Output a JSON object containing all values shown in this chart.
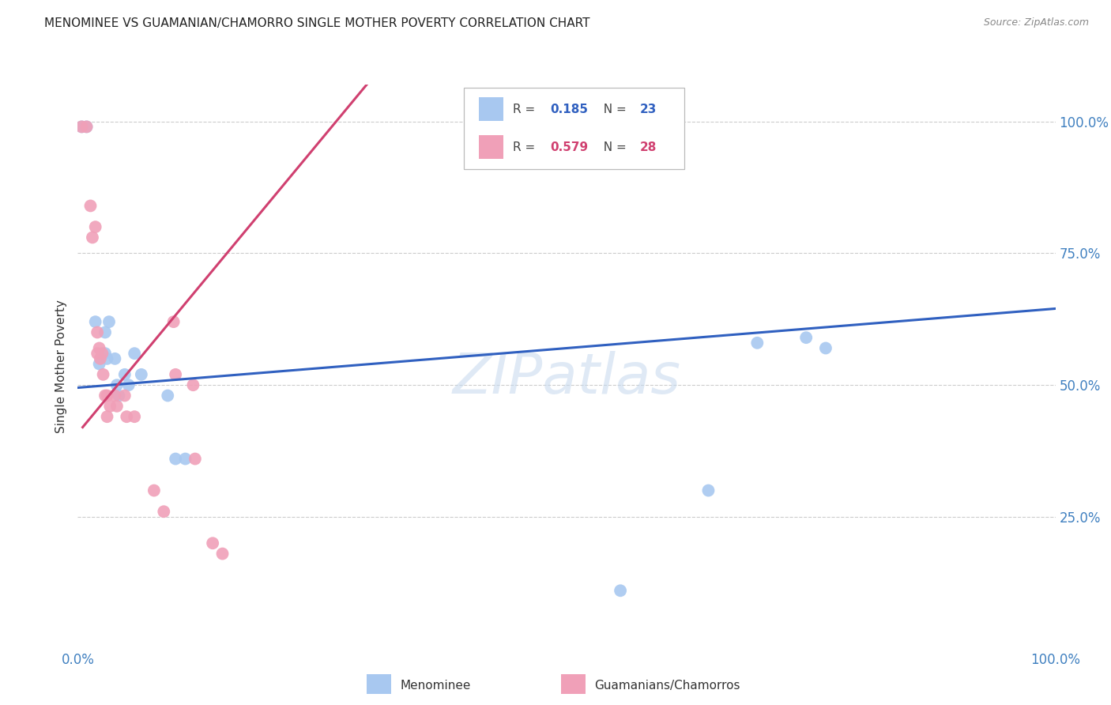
{
  "title": "MENOMINEE VS GUAMANIAN/CHAMORRO SINGLE MOTHER POVERTY CORRELATION CHART",
  "source": "Source: ZipAtlas.com",
  "ylabel": "Single Mother Poverty",
  "ytick_labels": [
    "100.0%",
    "75.0%",
    "50.0%",
    "25.0%"
  ],
  "ytick_values": [
    1.0,
    0.75,
    0.5,
    0.25
  ],
  "legend_blue_r_val": "0.185",
  "legend_blue_n_val": "23",
  "legend_pink_r_val": "0.579",
  "legend_pink_n_val": "28",
  "legend_label_blue": "Menominee",
  "legend_label_pink": "Guamanians/Chamorros",
  "blue_color": "#A8C8F0",
  "pink_color": "#F0A0B8",
  "blue_line_color": "#3060C0",
  "pink_line_color": "#D04070",
  "tick_color": "#4080C0",
  "watermark": "ZIPatlas",
  "menominee_x": [
    0.004,
    0.009,
    0.018,
    0.022,
    0.028,
    0.028,
    0.03,
    0.032,
    0.038,
    0.04,
    0.042,
    0.048,
    0.052,
    0.058,
    0.065,
    0.092,
    0.1,
    0.11,
    0.555,
    0.645,
    0.695,
    0.745,
    0.765
  ],
  "menominee_y": [
    0.99,
    0.99,
    0.62,
    0.54,
    0.6,
    0.56,
    0.55,
    0.62,
    0.55,
    0.5,
    0.48,
    0.52,
    0.5,
    0.56,
    0.52,
    0.48,
    0.36,
    0.36,
    0.11,
    0.3,
    0.58,
    0.59,
    0.57
  ],
  "chamorro_x": [
    0.004,
    0.009,
    0.013,
    0.015,
    0.018,
    0.02,
    0.02,
    0.022,
    0.023,
    0.025,
    0.026,
    0.028,
    0.03,
    0.03,
    0.033,
    0.038,
    0.04,
    0.048,
    0.05,
    0.058,
    0.078,
    0.088,
    0.098,
    0.1,
    0.118,
    0.12,
    0.138,
    0.148
  ],
  "chamorro_y": [
    0.99,
    0.99,
    0.84,
    0.78,
    0.8,
    0.6,
    0.56,
    0.57,
    0.55,
    0.56,
    0.52,
    0.48,
    0.48,
    0.44,
    0.46,
    0.48,
    0.46,
    0.48,
    0.44,
    0.44,
    0.3,
    0.26,
    0.62,
    0.52,
    0.5,
    0.36,
    0.2,
    0.18
  ],
  "blue_trendline_x": [
    0.0,
    1.0
  ],
  "blue_trendline_y": [
    0.495,
    0.645
  ],
  "pink_trendline_x": [
    0.005,
    0.3
  ],
  "pink_trendline_y": [
    0.42,
    1.08
  ],
  "xlim": [
    0.0,
    1.0
  ],
  "ylim": [
    0.0,
    1.07
  ],
  "background_color": "#FFFFFF",
  "grid_color": "#CCCCCC"
}
